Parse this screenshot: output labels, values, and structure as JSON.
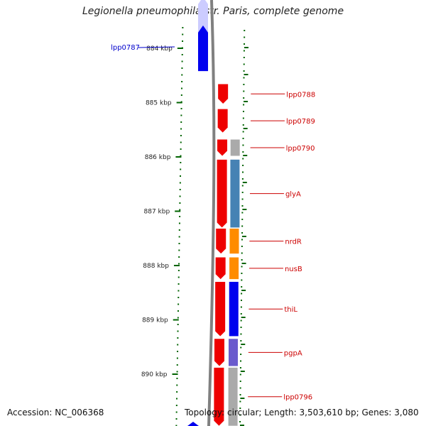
{
  "header": {
    "title": "Legionella pneumophila str. Paris, complete genome"
  },
  "footer": {
    "accession": "Accession: NC_006368",
    "topology": "Topology: circular; Length: 3,503,610 bp; Genes: 3,080"
  },
  "scale": {
    "ticks": [
      {
        "label": "884 kbp",
        "kbp": 884
      },
      {
        "label": "885 kbp",
        "kbp": 885
      },
      {
        "label": "886 kbp",
        "kbp": 886
      },
      {
        "label": "887 kbp",
        "kbp": 887
      },
      {
        "label": "888 kbp",
        "kbp": 888
      },
      {
        "label": "889 kbp",
        "kbp": 889
      },
      {
        "label": "890 kbp",
        "kbp": 890
      }
    ]
  },
  "genes": [
    {
      "label": "lpp0787",
      "strand": "minus",
      "color": "#0000ee",
      "label_color": "#0000cc",
      "start_kbp": 883.58,
      "end_kbp": 884.42
    },
    {
      "label": "lpp0788",
      "strand": "plus",
      "color": "#ee0000",
      "label_color": "#cc0000",
      "start_kbp": 884.66,
      "end_kbp": 885.02
    },
    {
      "label": "lpp0789",
      "strand": "plus",
      "color": "#ee0000",
      "label_color": "#cc0000",
      "start_kbp": 885.12,
      "end_kbp": 885.55
    },
    {
      "label": "lpp0790",
      "strand": "plus",
      "color": "#ee0000",
      "label_color": "#cc0000",
      "start_kbp": 885.68,
      "end_kbp": 885.98
    },
    {
      "label": "glyA",
      "strand": "plus",
      "color": "#ee0000",
      "label_color": "#cc0000",
      "start_kbp": 886.05,
      "end_kbp": 887.3
    },
    {
      "label": "nrdR",
      "strand": "plus",
      "color": "#ee0000",
      "label_color": "#cc0000",
      "start_kbp": 887.32,
      "end_kbp": 887.78
    },
    {
      "label": "nusB",
      "strand": "plus",
      "color": "#ee0000",
      "label_color": "#cc0000",
      "start_kbp": 887.85,
      "end_kbp": 888.25
    },
    {
      "label": "thiL",
      "strand": "plus",
      "color": "#ee0000",
      "label_color": "#cc0000",
      "start_kbp": 888.3,
      "end_kbp": 889.3
    },
    {
      "label": "pgpA",
      "strand": "plus",
      "color": "#ee0000",
      "label_color": "#cc0000",
      "start_kbp": 889.35,
      "end_kbp": 889.85
    },
    {
      "label": "lpp0796",
      "strand": "plus",
      "color": "#ee0000",
      "label_color": "#cc0000",
      "start_kbp": 889.88,
      "end_kbp": 890.95
    }
  ],
  "cog_track": [
    {
      "color": "#aaaaaa",
      "start_kbp": 885.68,
      "end_kbp": 885.98
    },
    {
      "color": "#4682b4",
      "start_kbp": 886.05,
      "end_kbp": 887.3
    },
    {
      "color": "#ff8c00",
      "start_kbp": 887.32,
      "end_kbp": 887.78
    },
    {
      "color": "#ff8c00",
      "start_kbp": 887.85,
      "end_kbp": 888.25
    },
    {
      "color": "#0000ee",
      "start_kbp": 888.3,
      "end_kbp": 889.3
    },
    {
      "color": "#6a5acd",
      "start_kbp": 889.35,
      "end_kbp": 889.85
    },
    {
      "color": "#aaaaaa",
      "start_kbp": 889.88,
      "end_kbp": 890.95
    }
  ],
  "colors": {
    "backbone": "#808080",
    "ticks": "#006400"
  }
}
